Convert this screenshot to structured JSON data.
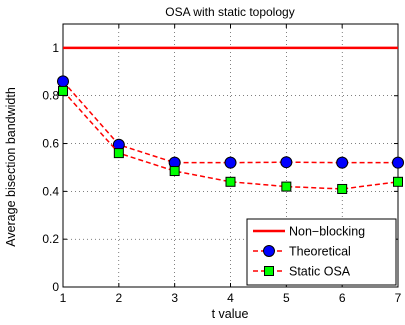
{
  "chart_data": {
    "type": "line",
    "title": "OSA with static topology",
    "xlabel": "t value",
    "ylabel": "Average bisection bandwidth",
    "xlim": [
      1,
      7
    ],
    "ylim": [
      0,
      1.1
    ],
    "xticks": [
      "1",
      "2",
      "3",
      "4",
      "5",
      "6",
      "7"
    ],
    "yticks": [
      "0",
      "0.2",
      "0.4",
      "0.6",
      "0.8",
      "1"
    ],
    "grid": true,
    "legend_position": "bottom-right",
    "x": [
      1,
      2,
      3,
      4,
      5,
      6,
      7
    ],
    "series": [
      {
        "name": "Non−blocking",
        "values": [
          1,
          1,
          1,
          1,
          1,
          1,
          1
        ],
        "color": "#ff0000",
        "style": "solid",
        "marker": "none"
      },
      {
        "name": "Theoretical",
        "values": [
          0.86,
          0.595,
          0.52,
          0.52,
          0.522,
          0.52,
          0.52
        ],
        "color": "#ff0000",
        "style": "dashed",
        "marker": "circle",
        "marker_fill": "#0000ff"
      },
      {
        "name": "Static OSA",
        "values": [
          0.82,
          0.56,
          0.485,
          0.44,
          0.42,
          0.41,
          0.44
        ],
        "color": "#ff0000",
        "style": "dashed",
        "marker": "square",
        "marker_fill": "#00ff00"
      }
    ]
  }
}
